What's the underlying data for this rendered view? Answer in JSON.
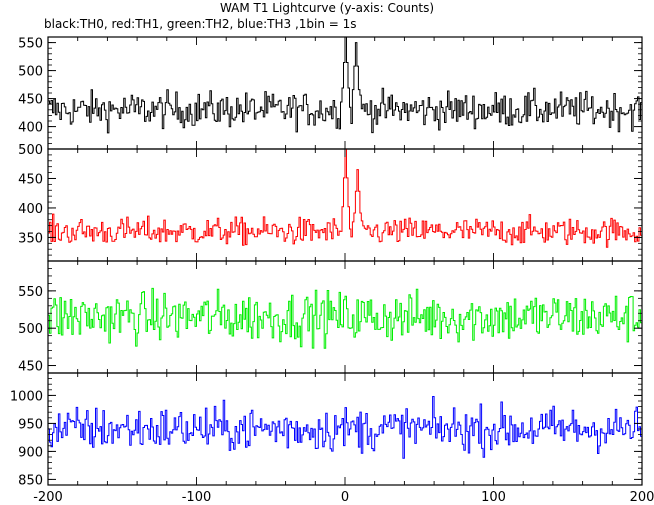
{
  "chart_data": {
    "type": "line",
    "title": "WAM T1 Lightcurve (y-axis: Counts)",
    "subtitle": "black:TH0, red:TH1, green:TH2, blue:TH3 ,1bin = 1s",
    "x_range": [
      -200,
      200
    ],
    "x_ticks": [
      -200,
      -100,
      0,
      100,
      200
    ],
    "panels": [
      {
        "name": "TH0",
        "color": "#000000",
        "ylim": [
          360,
          560
        ],
        "y_ticks": [
          400,
          450,
          500,
          550
        ],
        "baseline": 430,
        "noise_amplitude": 30,
        "features": [
          {
            "x": 0,
            "y": 560,
            "description": "flare peak"
          },
          {
            "x": 7,
            "y": 550
          }
        ]
      },
      {
        "name": "TH1",
        "color": "#ff0000",
        "ylim": [
          310,
          500
        ],
        "y_ticks": [
          350,
          400,
          450,
          500
        ],
        "baseline": 360,
        "noise_amplitude": 22,
        "features": [
          {
            "x": 0,
            "y": 500,
            "description": "flare peak"
          },
          {
            "x": 8,
            "y": 465
          }
        ]
      },
      {
        "name": "TH2",
        "color": "#00ee00",
        "ylim": [
          440,
          590
        ],
        "y_ticks": [
          450,
          500,
          550
        ],
        "baseline": 515,
        "noise_amplitude": 32,
        "features": []
      },
      {
        "name": "TH3",
        "color": "#0000ff",
        "ylim": [
          840,
          1040
        ],
        "y_ticks": [
          850,
          900,
          950,
          1000
        ],
        "baseline": 940,
        "noise_amplitude": 38,
        "features": []
      }
    ]
  }
}
